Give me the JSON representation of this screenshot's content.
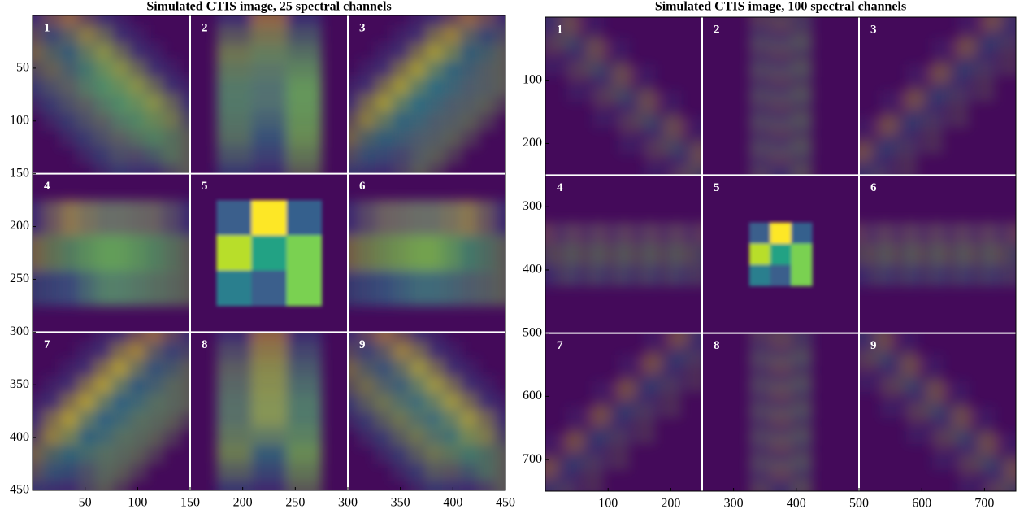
{
  "chart_data": [
    {
      "type": "image",
      "title": "Simulated CTIS image, 25 spectral channels",
      "xlim": [
        0,
        450
      ],
      "ylim": [
        450,
        0
      ],
      "xticks": [
        50,
        100,
        150,
        200,
        250,
        300,
        350,
        400,
        450
      ],
      "yticks": [
        50,
        100,
        150,
        200,
        250,
        300,
        350,
        400,
        450
      ],
      "panel_labels": [
        "1",
        "2",
        "3",
        "4",
        "5",
        "6",
        "7",
        "8",
        "9"
      ]
    },
    {
      "type": "image",
      "title": "Simulated CTIS image, 100 spectral channels",
      "xlim": [
        0,
        750
      ],
      "ylim": [
        750,
        0
      ],
      "xticks": [
        100,
        200,
        300,
        400,
        500,
        600,
        700
      ],
      "yticks": [
        100,
        200,
        300,
        400,
        500,
        600,
        700
      ],
      "panel_labels": [
        "1",
        "2",
        "3",
        "4",
        "5",
        "6",
        "7",
        "8",
        "9"
      ]
    }
  ]
}
